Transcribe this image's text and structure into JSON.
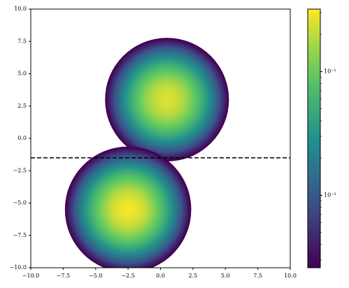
{
  "chart_data": {
    "type": "hist2d",
    "xlim": [
      -10,
      10
    ],
    "ylim": [
      -10,
      10
    ],
    "xticks": [
      {
        "value": -10,
        "label": "−10.0"
      },
      {
        "value": -7.5,
        "label": "−7.5"
      },
      {
        "value": -5,
        "label": "−5.0"
      },
      {
        "value": -2.5,
        "label": "−2.5"
      },
      {
        "value": 0,
        "label": "0.0"
      },
      {
        "value": 2.5,
        "label": "2.5"
      },
      {
        "value": 5,
        "label": "5.0"
      },
      {
        "value": 7.5,
        "label": "7.5"
      },
      {
        "value": 10,
        "label": "10.0"
      }
    ],
    "yticks": [
      {
        "value": -10,
        "label": "−10.0"
      },
      {
        "value": -7.5,
        "label": "−7.5"
      },
      {
        "value": -5,
        "label": "−5.0"
      },
      {
        "value": -2.5,
        "label": "−2.5"
      },
      {
        "value": 0,
        "label": "0.0"
      },
      {
        "value": 2.5,
        "label": "2.5"
      },
      {
        "value": 5,
        "label": "5.0"
      },
      {
        "value": 7.5,
        "label": "7.5"
      },
      {
        "value": 10,
        "label": "10.0"
      }
    ],
    "clusters": [
      {
        "x": 0.5,
        "y": 3.0,
        "peak": 0.25,
        "sigma": 1.58
      },
      {
        "x": -2.5,
        "y": -5.5,
        "peak": 0.3,
        "sigma": 1.58
      }
    ],
    "hline": {
      "y": -1.5,
      "color": "#000000",
      "style": "dashed"
    },
    "colorbar": {
      "scale": "log",
      "clim": [
        0.0026,
        0.32
      ],
      "colormap": "viridis",
      "ticks": [
        {
          "value": 0.01,
          "label": "10⁻²"
        },
        {
          "value": 0.1,
          "label": "10⁻¹"
        }
      ]
    }
  }
}
